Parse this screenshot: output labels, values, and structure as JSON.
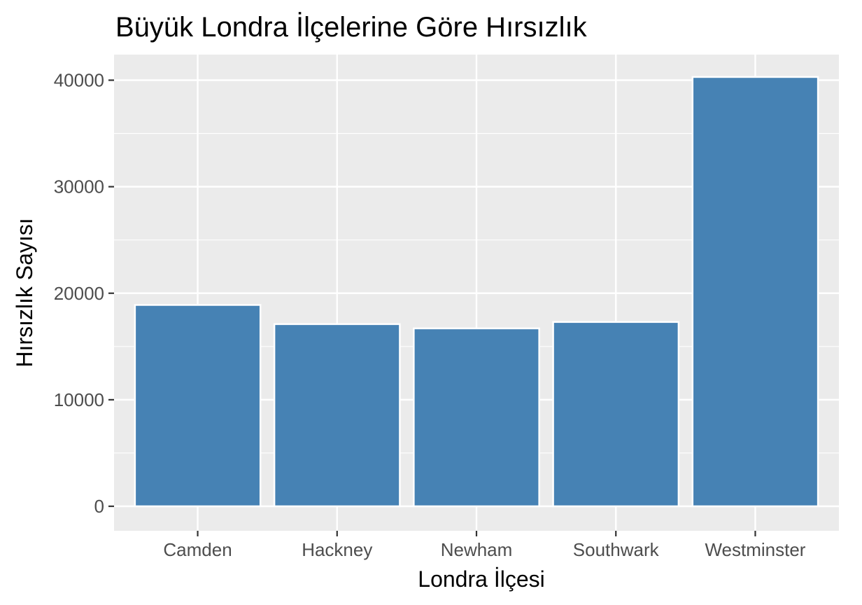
{
  "chart_data": {
    "type": "bar",
    "title": "Büyük Londra İlçelerine Göre Hırsızlık",
    "xlabel": "Londra İlçesi",
    "ylabel": "Hırsızlık Sayısı",
    "categories": [
      "Camden",
      "Hackney",
      "Newham",
      "Southwark",
      "Westminster"
    ],
    "values": [
      18900,
      17100,
      16700,
      17300,
      40300
    ],
    "ylim": [
      -2300,
      42400
    ],
    "yticks": [
      0,
      10000,
      20000,
      30000,
      40000
    ],
    "ytick_labels": [
      "0",
      "10000",
      "20000",
      "30000",
      "40000"
    ],
    "grid": true,
    "colors": {
      "bar": "#4682b4",
      "bar_outline": "#ffffff",
      "panel": "#ebebeb",
      "grid_major": "#ffffff",
      "tick_text": "#4d4d4d"
    }
  }
}
